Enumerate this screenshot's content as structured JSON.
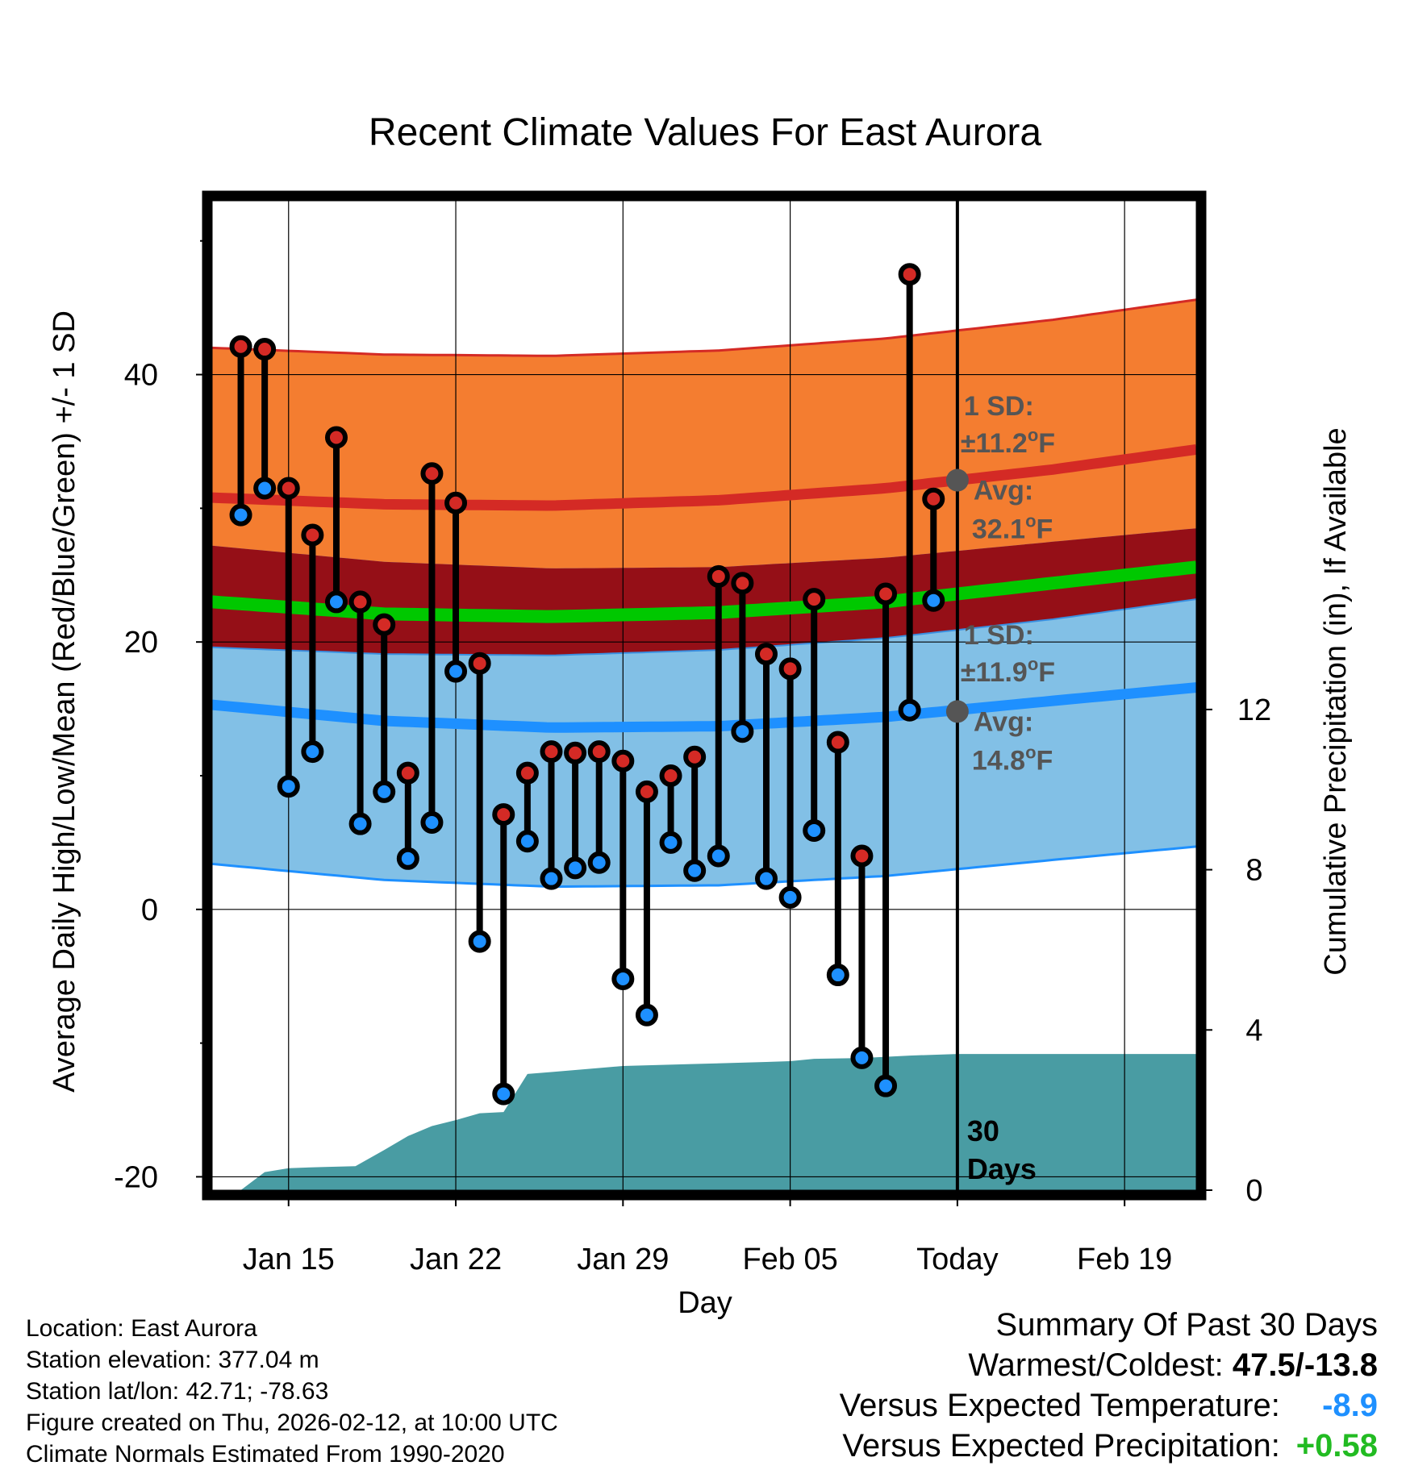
{
  "chart_data": {
    "type": "line",
    "title": "Recent Climate Values For East Aurora",
    "xlabel": "Day",
    "ylabel_left": "Average Daily High/Low/Mean (Red/Blue/Green) +/- 1 SD",
    "ylabel_right": "Cumulative Precipitation (in), If Available",
    "ylim_left": [
      -21,
      53
    ],
    "ylim_right": [
      0,
      24.7
    ],
    "xlim_days": [
      -42.2,
      -1.0
    ],
    "left_ticks": [
      "-20",
      "0",
      "20",
      "40"
    ],
    "left_tick_values": [
      -20,
      0,
      20,
      40
    ],
    "right_ticks": [
      "0",
      "4",
      "8",
      "12"
    ],
    "right_tick_values": [
      0,
      4,
      8,
      12
    ],
    "x_ticks": [
      {
        "label": "Jan 15",
        "day": -39
      },
      {
        "label": "Jan 22",
        "day": -32
      },
      {
        "label": "Jan 29",
        "day": -25
      },
      {
        "label": "Feb 05",
        "day": -18
      },
      {
        "label": "Today",
        "day": -11
      },
      {
        "label": "Feb 19",
        "day": -4
      }
    ],
    "today_day": -11,
    "window_label_number": "30",
    "window_label_text": "Days",
    "normals_days": [
      -42.2,
      -35,
      -28,
      -21,
      -14,
      -7,
      -1
    ],
    "normal_high": [
      30.8,
      30.3,
      30.2,
      30.6,
      31.5,
      32.9,
      34.4
    ],
    "normal_low": [
      15.3,
      14.1,
      13.6,
      13.7,
      14.4,
      15.6,
      16.6
    ],
    "normal_mean": [
      23.0,
      22.1,
      21.9,
      22.2,
      23.0,
      24.4,
      25.6
    ],
    "sd_high": 11.2,
    "sd_low": 11.9,
    "sd_mean": 1.3,
    "colors": {
      "high_band": "#F47D30",
      "high_line": "#D42A25",
      "mean_band": "#950F17",
      "mean_line": "#00C800",
      "low_band": "#82C0E6",
      "low_line": "#1E90FF",
      "precip": "#499CA3",
      "high_dot": "#D42A25",
      "low_dot": "#1E90FF",
      "avg_dot": "#555555",
      "annot": "#555555"
    },
    "observations": [
      {
        "day": -41,
        "high": 42.1,
        "low": 29.5
      },
      {
        "day": -40,
        "high": 41.9,
        "low": 31.5
      },
      {
        "day": -39,
        "high": 31.5,
        "low": 9.2
      },
      {
        "day": -38,
        "high": 28.0,
        "low": 11.8
      },
      {
        "day": -37,
        "high": 35.3,
        "low": 23.0
      },
      {
        "day": -36,
        "high": 23.0,
        "low": 6.4
      },
      {
        "day": -35,
        "high": 21.3,
        "low": 8.8
      },
      {
        "day": -34,
        "high": 10.2,
        "low": 3.8
      },
      {
        "day": -33,
        "high": 32.6,
        "low": 6.5
      },
      {
        "day": -32,
        "high": 30.4,
        "low": 17.8
      },
      {
        "day": -31,
        "high": 18.4,
        "low": -2.4
      },
      {
        "day": -30,
        "high": 7.1,
        "low": -13.8
      },
      {
        "day": -29,
        "high": 10.2,
        "low": 5.1
      },
      {
        "day": -28,
        "high": 11.8,
        "low": 2.3
      },
      {
        "day": -27,
        "high": 11.7,
        "low": 3.1
      },
      {
        "day": -26,
        "high": 11.8,
        "low": 3.5
      },
      {
        "day": -25,
        "high": 11.1,
        "low": -5.2
      },
      {
        "day": -24,
        "high": 8.8,
        "low": -7.9
      },
      {
        "day": -23,
        "high": 10.0,
        "low": 5.0
      },
      {
        "day": -22,
        "high": 11.4,
        "low": 2.9
      },
      {
        "day": -21,
        "high": 24.9,
        "low": 4.0
      },
      {
        "day": -20,
        "high": 24.4,
        "low": 13.3
      },
      {
        "day": -19,
        "high": 19.1,
        "low": 2.3
      },
      {
        "day": -18,
        "high": 18.0,
        "low": 0.9
      },
      {
        "day": -17,
        "high": 23.2,
        "low": 5.9
      },
      {
        "day": -16,
        "high": 12.5,
        "low": -4.9
      },
      {
        "day": -15,
        "high": 4.0,
        "low": -11.1
      },
      {
        "day": -14,
        "high": 23.6,
        "low": -13.2
      },
      {
        "day": -13,
        "high": 47.5,
        "low": 14.9
      },
      {
        "day": -12,
        "high": 30.7,
        "low": 23.1
      }
    ],
    "precip_days": [
      -41.0,
      -40.0,
      -39.0,
      -37.5,
      -36.2,
      -35.0,
      -34.0,
      -33.0,
      -32.0,
      -31.0,
      -30.0,
      -29.0,
      -28.0,
      -26.0,
      -25.0,
      -22.0,
      -19.0,
      -18.0,
      -17.0,
      -15.0,
      -13.0,
      -11.0,
      -7.0,
      -1.0
    ],
    "precip_values": [
      0.0,
      0.45,
      0.55,
      0.58,
      0.6,
      1.0,
      1.35,
      1.6,
      1.75,
      1.92,
      1.95,
      2.9,
      2.95,
      3.05,
      3.1,
      3.15,
      3.2,
      3.22,
      3.28,
      3.3,
      3.36,
      3.4,
      3.4,
      3.4
    ],
    "annotations": {
      "high": {
        "sd_label": "1 SD:",
        "sd_value": "±11.2",
        "avg_label": "Avg:",
        "avg_value": "32.1",
        "unit": "F",
        "degree": "o",
        "avg": 32.1
      },
      "low": {
        "sd_label": "1 SD:",
        "sd_value": "±11.9",
        "avg_label": "Avg:",
        "avg_value": "14.8",
        "unit": "F",
        "degree": "o",
        "avg": 14.8
      }
    }
  },
  "station": {
    "location": "Location: East Aurora",
    "elevation": "Station elevation: 377.04 m",
    "latlon": "Station lat/lon: 42.71; -78.63",
    "created": "Figure created on Thu, 2026-02-12, at 10:00 UTC",
    "normals": "Climate Normals Estimated From 1990-2020"
  },
  "summary": {
    "title": "Summary Of Past 30 Days",
    "warm_cold_label": "Warmest/Coldest:",
    "warm_cold_value": "47.5/-13.8",
    "temp_label": "Versus Expected Temperature:",
    "temp_value": "-8.9",
    "temp_color": "#1E90FF",
    "precip_label": "Versus Expected Precipitation:",
    "precip_value": "+0.58",
    "precip_color": "#22BB22"
  }
}
